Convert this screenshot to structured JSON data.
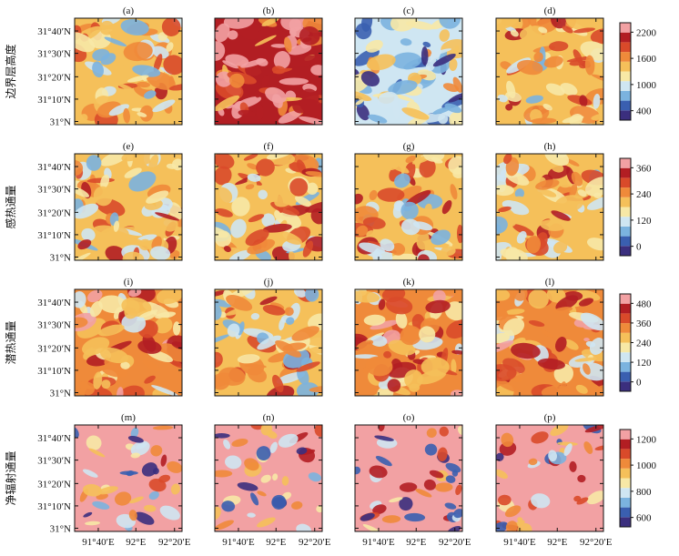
{
  "figure": {
    "panel_labels": [
      "(a)",
      "(b)",
      "(c)",
      "(d)",
      "(e)",
      "(f)",
      "(g)",
      "(h)",
      "(i)",
      "(j)",
      "(k)",
      "(l)",
      "(m)",
      "(n)",
      "(o)",
      "(p)"
    ],
    "y_tick_labels": [
      "31°40′N",
      "31°30′N",
      "31°20′N",
      "31°10′N",
      "31°N"
    ],
    "x_tick_labels": [
      "91°40′E",
      "92°E",
      "92°20′E"
    ]
  },
  "chart_data": {
    "type": "heatmap",
    "grid": "4x4 panels",
    "rows": [
      {
        "title": "边界层高度",
        "panels": [
          "(a)",
          "(b)",
          "(c)",
          "(d)"
        ],
        "colorbar_ticks": [
          "2200",
          "1600",
          "1000",
          "400"
        ],
        "colorbar_values": [
          2200,
          1600,
          1000,
          400
        ],
        "colors": [
          "#3b2f7e",
          "#3a5fb0",
          "#7bb3df",
          "#cfe6f2",
          "#f7e8a6",
          "#f5c05a",
          "#ef8a3a",
          "#d94a2a",
          "#b21e23",
          "#f2a1a3"
        ],
        "panel_means": [
          1500,
          2100,
          1000,
          1300
        ]
      },
      {
        "title": "感热通量",
        "panels": [
          "(e)",
          "(f)",
          "(g)",
          "(h)"
        ],
        "colorbar_ticks": [
          "360",
          "240",
          "120",
          "0"
        ],
        "colorbar_values": [
          360,
          240,
          120,
          0
        ],
        "colors": [
          "#3b2f7e",
          "#3a5fb0",
          "#7bb3df",
          "#cfe6f2",
          "#f7e8a6",
          "#f5c05a",
          "#ef8a3a",
          "#d94a2a",
          "#b21e23",
          "#f2a1a3"
        ],
        "panel_means": [
          230,
          220,
          200,
          210
        ]
      },
      {
        "title": "潜热通量",
        "panels": [
          "(i)",
          "(j)",
          "(k)",
          "(l)"
        ],
        "colorbar_ticks": [
          "480",
          "360",
          "240",
          "120",
          "0"
        ],
        "colorbar_values": [
          480,
          360,
          240,
          120,
          0
        ],
        "colors": [
          "#3b2f7e",
          "#3a5fb0",
          "#7bb3df",
          "#cfe6f2",
          "#f7e8a6",
          "#f5c05a",
          "#ef8a3a",
          "#d94a2a",
          "#b21e23",
          "#f2a1a3"
        ],
        "panel_means": [
          330,
          300,
          370,
          360
        ]
      },
      {
        "title": "净辐射通量",
        "panels": [
          "(m)",
          "(n)",
          "(o)",
          "(p)"
        ],
        "colorbar_ticks": [
          "1200",
          "1000",
          "800",
          "600"
        ],
        "colorbar_values": [
          1200,
          1000,
          800,
          600
        ],
        "colors": [
          "#3b2f7e",
          "#3a5fb0",
          "#7bb3df",
          "#cfe6f2",
          "#f7e8a6",
          "#f5c05a",
          "#ef8a3a",
          "#d94a2a",
          "#b21e23",
          "#f2a1a3"
        ],
        "panel_means": [
          1300,
          1300,
          1300,
          1300
        ]
      }
    ]
  }
}
